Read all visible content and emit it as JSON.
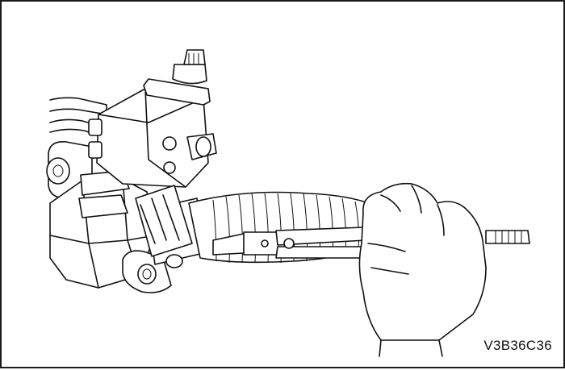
{
  "figure": {
    "code": "V3B36C36",
    "colors": {
      "line": "#111111",
      "background": "#ffffff"
    }
  }
}
